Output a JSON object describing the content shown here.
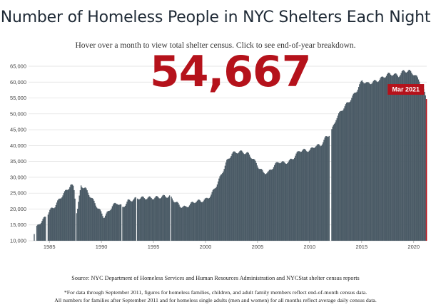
{
  "title": "Number of Homeless People in NYC Shelters Each Night",
  "instructions": "Hover over a month to view total shelter census. Click to see end-of-year breakdown.",
  "highlight": {
    "value_label": "54,667",
    "month_label": "Mar 2021",
    "value": 54667,
    "color": "#b5121b"
  },
  "colors": {
    "bar": "#4b5b66",
    "highlight": "#b5121b",
    "grid": "#dddddd"
  },
  "source": "Source: NYC Department of Homeless Services and Human Resources Administration and NYCStat shelter census reports",
  "footnote": [
    "*For data through September 2011, figures for homeless families, children, and adult family members reflect end-of-month census data.",
    "All numbers for families after September 2011 and for homeless single adults (men and women) for all months reflect average daily census data."
  ],
  "chart_data": {
    "type": "area",
    "title": "Number of Homeless People in NYC Shelters Each Night",
    "xlabel": "",
    "ylabel": "",
    "xlim": [
      1983,
      2021.25
    ],
    "ylim": [
      10000,
      65000
    ],
    "yticks": [
      10000,
      15000,
      20000,
      25000,
      30000,
      35000,
      40000,
      45000,
      50000,
      55000,
      60000,
      65000
    ],
    "ytick_labels": [
      "10,000",
      "15,000",
      "20,000",
      "25,000",
      "30,000",
      "35,000",
      "40,000",
      "45,000",
      "50,000",
      "55,000",
      "60,000",
      "65,000"
    ],
    "xticks": [
      1985,
      1990,
      1995,
      2000,
      2005,
      2010,
      2015,
      2020
    ],
    "xtick_labels": [
      "1985",
      "1990",
      "1995",
      "2000",
      "2005",
      "2010",
      "2015",
      "2020"
    ],
    "grid": true,
    "series": [
      {
        "x": [
          1983.5,
          1983.7,
          1984.0,
          1984.3,
          1984.6,
          1985.0,
          1985.5,
          1986.0,
          1986.5,
          1987.0,
          1987.3,
          1987.6,
          1988.0,
          1988.4,
          1988.8,
          1989.3,
          1989.8,
          1990.2,
          1990.6,
          1991.0,
          1991.5,
          1992.0,
          1992.5,
          1993.0,
          1993.5,
          1994.0,
          1995.0,
          1996.0,
          1996.5,
          1997.0,
          1997.5,
          1998.0,
          1998.5,
          1999.0,
          1999.5,
          2000.0,
          2000.5,
          2001.0,
          2001.5,
          2002.0,
          2002.5,
          2003.0,
          2003.5,
          2004.0,
          2004.5,
          2005.0,
          2005.5,
          2006.0,
          2006.5,
          2007.0,
          2007.5,
          2008.0,
          2008.5,
          2009.0,
          2009.5,
          2010.0,
          2010.5,
          2011.0,
          2011.5,
          2012.0,
          2012.5,
          2013.0,
          2013.5,
          2014.0,
          2014.5,
          2015.0,
          2015.5,
          2016.0,
          2016.5,
          2017.0,
          2017.5,
          2018.0,
          2018.5,
          2019.0,
          2019.5,
          2020.0,
          2020.5,
          2020.9,
          2021.2
        ],
        "y": [
          12500,
          14000,
          15500,
          16500,
          17500,
          19500,
          21000,
          23500,
          25500,
          27500,
          27000,
          18500,
          27500,
          26500,
          24500,
          22000,
          19500,
          17500,
          19000,
          21000,
          22000,
          20500,
          22500,
          23000,
          23500,
          23500,
          23500,
          24000,
          24000,
          22500,
          21000,
          20500,
          21500,
          22500,
          22500,
          23000,
          24500,
          27500,
          31000,
          35000,
          37500,
          38000,
          38000,
          37500,
          36000,
          33500,
          31500,
          31500,
          33500,
          35000,
          34500,
          35000,
          36500,
          38500,
          38500,
          38500,
          40000,
          40000,
          42500,
          44000,
          48500,
          51000,
          53000,
          55000,
          57500,
          60500,
          59500,
          60000,
          60500,
          61500,
          62500,
          62500,
          62000,
          63500,
          63500,
          62500,
          60500,
          57500,
          54667
        ]
      }
    ],
    "gaps": [
      1987.5,
      1991.9,
      1993.3,
      1996.6,
      2011.95
    ]
  }
}
